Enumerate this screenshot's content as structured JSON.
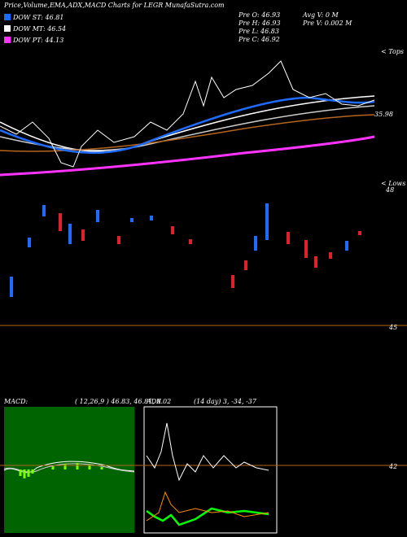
{
  "header": {
    "title": "Price,Volume,EMA,ADX,MACD Charts for LEGR MunafaSutra.com"
  },
  "legend": [
    {
      "label": "DOW ST: 46.81",
      "color": "#1e6bff"
    },
    {
      "label": "DOW MT: 46.54",
      "color": "#ffffff"
    },
    {
      "label": "DOW PT: 44.13",
      "color": "#ff33ff"
    }
  ],
  "info": {
    "left": [
      "Pre  O: 46.93",
      "Pre  H: 46.93",
      "Pre  L: 46.83",
      "Pre  C: 46.92"
    ],
    "right": [
      "Avg V: 0  M",
      "Pre  V: 0.002  M"
    ]
  },
  "price_panel": {
    "label": "35.98",
    "tops": "< Tops"
  },
  "candle_panel": {
    "lows": "< Lows",
    "axis": [
      "48",
      "45"
    ]
  },
  "macd": {
    "name": "MACD:",
    "params": "( 12,26,9 ) 46.83, 46.81, 0.02"
  },
  "adx": {
    "name": "ADX",
    "params": "(14  day) 3,  -34,  -37",
    "axis": "42"
  }
}
